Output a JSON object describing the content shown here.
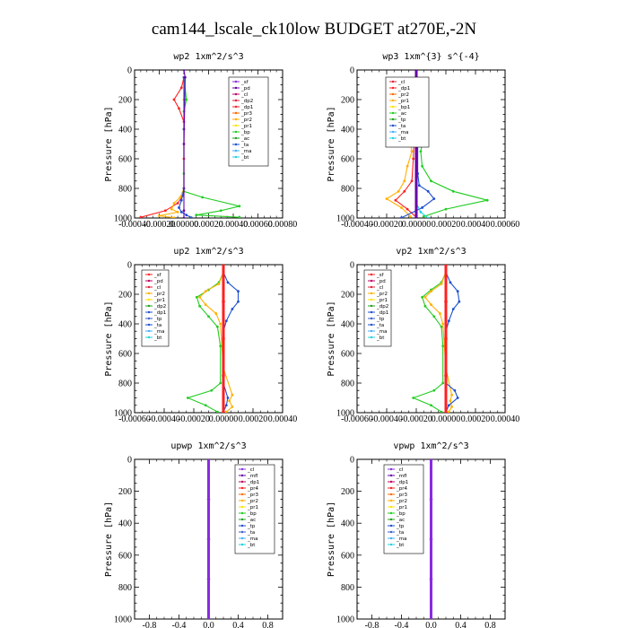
{
  "title": "cam144_lscale_ck10low  BUDGET at270E,-2N",
  "chart_data": [
    {
      "type": "line",
      "title": "wp2  1xm^2/s^3",
      "ylabel": "Pressure [hPa]",
      "ylim": [
        1000,
        0
      ],
      "yticks": [
        "0",
        "200",
        "400",
        "600",
        "800",
        "1000"
      ],
      "xticks": [
        "-0.00040",
        "-0.00020",
        "0.00000",
        "0.00020",
        "0.00040",
        "0.00060",
        "0.00080"
      ],
      "xlim": [
        -0.0004,
        0.0008
      ],
      "legend": [
        "_sf",
        "_pd",
        "_cl",
        "_dp2",
        "_dp1",
        "_pr3",
        "_pr2",
        "_pr1",
        "_bp",
        "_ac",
        "_ta",
        "_ma",
        "_bt"
      ],
      "legend_colors": [
        "#8a2be2",
        "#6a00a8",
        "#c00060",
        "#e0203a",
        "#ff2020",
        "#ff6a00",
        "#ffb000",
        "#ffe000",
        "#22cc22",
        "#20a020",
        "#1e4fd0",
        "#40b0ff",
        "#20d0e0"
      ],
      "series": [
        {
          "color": "#ff2020",
          "x": [
            0,
            -2e-05,
            -8e-05,
            -4e-05,
            0,
            0,
            0,
            -1e-05,
            -5e-05,
            -0.00015,
            -0.00035
          ],
          "y": [
            50,
            120,
            200,
            260,
            350,
            600,
            800,
            850,
            900,
            950,
            995
          ]
        },
        {
          "color": "#22cc22",
          "x": [
            0,
            2e-05,
            0,
            0,
            0,
            0,
            0.00015,
            0.00045,
            0.0003,
            0.0001,
            0.00045
          ],
          "y": [
            50,
            200,
            280,
            400,
            700,
            820,
            860,
            920,
            950,
            980,
            995
          ]
        },
        {
          "color": "#ffb000",
          "x": [
            0,
            0,
            0,
            0,
            -3e-05,
            -8e-05,
            -0.0001,
            -5e-05,
            -0.0002,
            -8e-05
          ],
          "y": [
            50,
            200,
            400,
            800,
            860,
            900,
            940,
            960,
            985,
            998
          ]
        },
        {
          "color": "#1e4fd0",
          "x": [
            0,
            0,
            0,
            -2e-05,
            -4e-05,
            -2e-05,
            2e-05,
            6e-05
          ],
          "y": [
            50,
            400,
            800,
            880,
            930,
            960,
            980,
            998
          ]
        },
        {
          "color": "#6a00a8",
          "x": [
            0,
            1e-05,
            0,
            0,
            0
          ],
          "y": [
            0,
            50,
            500,
            950,
            1000
          ]
        }
      ]
    },
    {
      "type": "line",
      "title": "wp3  1xm^{3} s^{-4}",
      "ylabel": "Pressure [hPa]",
      "ylim": [
        1000,
        0
      ],
      "yticks": [
        "0",
        "200",
        "400",
        "600",
        "800",
        "1000"
      ],
      "xticks": [
        "-0.00040",
        "-0.00020",
        "0.00000",
        "0.00020",
        "0.00040",
        "0.00060"
      ],
      "xlim": [
        -0.0004,
        0.0006
      ],
      "legend": [
        "_cl",
        "_dp1",
        "_pr2",
        "_pr1",
        "_bp1",
        "_ac",
        "_tp",
        "_ta",
        "_ma",
        "_bt"
      ],
      "legend_colors": [
        "#e0203a",
        "#ff2020",
        "#ff6a00",
        "#ffb000",
        "#ffe000",
        "#22cc22",
        "#20a020",
        "#1e4fd0",
        "#40b0ff",
        "#20d0e0"
      ],
      "series": [
        {
          "color": "#ffb000",
          "x": [
            0,
            -2e-05,
            -5e-05,
            -6e-05,
            -5e-05,
            -3e-05,
            -6e-05,
            -8e-05,
            -0.00012,
            -0.0002,
            -0.0001,
            -4e-05
          ],
          "y": [
            50,
            150,
            250,
            350,
            450,
            550,
            650,
            750,
            820,
            870,
            930,
            990
          ]
        },
        {
          "color": "#22cc22",
          "x": [
            0,
            2e-05,
            4e-05,
            7e-05,
            5e-05,
            3e-05,
            4e-05,
            0.0001,
            0.00025,
            0.00048,
            0.0002,
            5e-05
          ],
          "y": [
            50,
            150,
            250,
            350,
            450,
            550,
            650,
            750,
            820,
            880,
            940,
            990
          ]
        },
        {
          "color": "#ff2020",
          "x": [
            0,
            -1e-05,
            -2e-05,
            -3e-05,
            -8e-05,
            -0.00014,
            -6e-05,
            0
          ],
          "y": [
            50,
            300,
            600,
            750,
            820,
            880,
            940,
            995
          ]
        },
        {
          "color": "#1e4fd0",
          "x": [
            0,
            1e-05,
            1e-05,
            2e-05,
            8e-05,
            0.00012,
            4e-05,
            -0.0001
          ],
          "y": [
            50,
            400,
            700,
            780,
            820,
            870,
            930,
            998
          ]
        },
        {
          "color": "#20d0e0",
          "x": [
            0,
            0,
            3e-05,
            8e-05
          ],
          "y": [
            0,
            900,
            960,
            1000
          ]
        },
        {
          "color": "#6a00a8",
          "x": [
            0,
            0,
            0
          ],
          "y": [
            0,
            500,
            1000
          ]
        }
      ]
    },
    {
      "type": "line",
      "title": "up2  1xm^2/s^3",
      "ylabel": "Pressure [hPa]",
      "ylim": [
        1000,
        0
      ],
      "yticks": [
        "0",
        "200",
        "400",
        "600",
        "800",
        "1000"
      ],
      "xticks": [
        "-0.00060",
        "-0.00040",
        "-0.00020",
        "0.00000",
        "0.00020",
        "0.00040"
      ],
      "xlim": [
        -0.0006,
        0.0004
      ],
      "legend": [
        "_sf",
        "_pd",
        "_cl",
        "_pr2",
        "_pr1",
        "_dp2",
        "_dp1",
        "_tp",
        "_ta",
        "_ma",
        "_bt"
      ],
      "legend_colors": [
        "#ff2020",
        "#c00060",
        "#e0203a",
        "#ffb000",
        "#ffe000",
        "#20a020",
        "#1e4fd0",
        "#3a5fd0",
        "#1e4fd0",
        "#40b0ff",
        "#20d0e0"
      ],
      "series": [
        {
          "color": "#22cc22",
          "x": [
            0,
            -3e-05,
            -0.0001,
            -0.00018,
            -0.00016,
            -0.0001,
            -4e-05,
            -2e-05,
            -2e-05,
            -8e-05,
            -0.00024,
            -0.00012,
            -4e-05
          ],
          "y": [
            50,
            120,
            170,
            220,
            280,
            350,
            420,
            550,
            800,
            850,
            900,
            950,
            995
          ]
        },
        {
          "color": "#ffb000",
          "x": [
            0,
            -3e-05,
            -0.00012,
            -0.00016,
            -0.00012,
            -5e-05,
            -2e-05,
            0,
            6e-05,
            4e-05,
            6e-05,
            2e-05
          ],
          "y": [
            50,
            130,
            180,
            220,
            270,
            330,
            400,
            700,
            880,
            920,
            960,
            995
          ]
        },
        {
          "color": "#1e4fd0",
          "x": [
            0,
            3e-05,
            0.0001,
            0.0001,
            6e-05,
            2e-05,
            0,
            0,
            3e-05,
            2e-05,
            0
          ],
          "y": [
            50,
            120,
            180,
            250,
            300,
            380,
            450,
            800,
            900,
            950,
            995
          ]
        },
        {
          "color": "#ff2020",
          "x": [
            0,
            0,
            0,
            0,
            0
          ],
          "y": [
            0,
            250,
            500,
            750,
            1000
          ]
        }
      ]
    },
    {
      "type": "line",
      "title": "vp2  1xm^2/s^3",
      "ylabel": "Pressure [hPa]",
      "ylim": [
        1000,
        0
      ],
      "yticks": [
        "0",
        "200",
        "400",
        "600",
        "800",
        "1000"
      ],
      "xticks": [
        "-0.00060",
        "-0.00040",
        "-0.00020",
        "0.00000",
        "0.00020",
        "0.00040"
      ],
      "xlim": [
        -0.0006,
        0.0004
      ],
      "legend": [
        "_sf",
        "_pd",
        "_cl",
        "_pr2",
        "_pr1",
        "_dp2",
        "_dp1",
        "_tp",
        "_ta",
        "_ma",
        "_bt"
      ],
      "legend_colors": [
        "#ff2020",
        "#c00060",
        "#e0203a",
        "#ffb000",
        "#ffe000",
        "#20a020",
        "#1e4fd0",
        "#3a5fd0",
        "#1e4fd0",
        "#40b0ff",
        "#20d0e0"
      ],
      "series": [
        {
          "color": "#22cc22",
          "x": [
            0,
            -3e-05,
            -0.0001,
            -0.00016,
            -0.00014,
            -8e-05,
            -3e-05,
            -2e-05,
            -2e-05,
            -8e-05,
            -0.00022,
            -0.0001,
            -3e-05
          ],
          "y": [
            50,
            120,
            170,
            220,
            280,
            350,
            420,
            550,
            800,
            850,
            900,
            950,
            995
          ]
        },
        {
          "color": "#ffb000",
          "x": [
            0,
            -3e-05,
            -0.0001,
            -0.00014,
            -0.0001,
            -4e-05,
            -2e-05,
            0,
            4e-05,
            3e-05,
            4e-05,
            2e-05
          ],
          "y": [
            50,
            130,
            180,
            220,
            270,
            330,
            400,
            700,
            880,
            920,
            960,
            995
          ]
        },
        {
          "color": "#1e4fd0",
          "x": [
            0,
            3e-05,
            8e-05,
            9e-05,
            5e-05,
            2e-05,
            0,
            0,
            6e-05,
            8e-05,
            2e-05,
            0
          ],
          "y": [
            50,
            120,
            180,
            250,
            300,
            380,
            450,
            800,
            850,
            900,
            950,
            995
          ]
        },
        {
          "color": "#ff2020",
          "x": [
            0,
            0,
            0,
            0,
            0
          ],
          "y": [
            0,
            250,
            500,
            750,
            1000
          ]
        }
      ]
    },
    {
      "type": "line",
      "title": "upwp  1xm^2/s^3",
      "ylabel": "Pressure [hPa]",
      "ylim": [
        1000,
        0
      ],
      "yticks": [
        "0",
        "200",
        "400",
        "600",
        "800",
        "1000"
      ],
      "xticks": [
        "-0.8",
        "-0.4",
        "0.0",
        "0.4",
        "0.8"
      ],
      "xlim": [
        -1.0,
        1.0
      ],
      "legend": [
        "_cl",
        "_mfl",
        "_dp1",
        "_pr4",
        "_pr3",
        "_pr2",
        "_pr1",
        "_bp",
        "_ac",
        "_tp",
        "_ta",
        "_ma",
        "_bt"
      ],
      "legend_colors": [
        "#8a2be2",
        "#6a00a8",
        "#c00060",
        "#ff2020",
        "#ff6a00",
        "#ffb000",
        "#ffe000",
        "#22cc22",
        "#20a020",
        "#1e4fd0",
        "#3a5fd0",
        "#40b0ff",
        "#20d0e0"
      ],
      "series": [
        {
          "color": "#8a2be2",
          "x": [
            0,
            0,
            0,
            0,
            0
          ],
          "y": [
            0,
            250,
            500,
            750,
            1000
          ]
        }
      ]
    },
    {
      "type": "line",
      "title": "vpwp  1xm^2/s^3",
      "ylabel": "Pressure [hPa]",
      "ylim": [
        1000,
        0
      ],
      "yticks": [
        "0",
        "200",
        "400",
        "600",
        "800",
        "1000"
      ],
      "xticks": [
        "-0.8",
        "-0.4",
        "0.0",
        "0.4",
        "0.8"
      ],
      "xlim": [
        -1.0,
        1.0
      ],
      "legend": [
        "_cl",
        "_mfl",
        "_dp1",
        "_pr4",
        "_pr3",
        "_pr2",
        "_pr1",
        "_bp",
        "_ac",
        "_tp",
        "_ta",
        "_ma",
        "_bt"
      ],
      "legend_colors": [
        "#8a2be2",
        "#6a00a8",
        "#c00060",
        "#ff2020",
        "#ff6a00",
        "#ffb000",
        "#ffe000",
        "#22cc22",
        "#20a020",
        "#1e4fd0",
        "#3a5fd0",
        "#40b0ff",
        "#20d0e0"
      ],
      "series": [
        {
          "color": "#8a2be2",
          "x": [
            0,
            0,
            0,
            0,
            0
          ],
          "y": [
            0,
            250,
            500,
            750,
            1000
          ]
        }
      ]
    }
  ]
}
